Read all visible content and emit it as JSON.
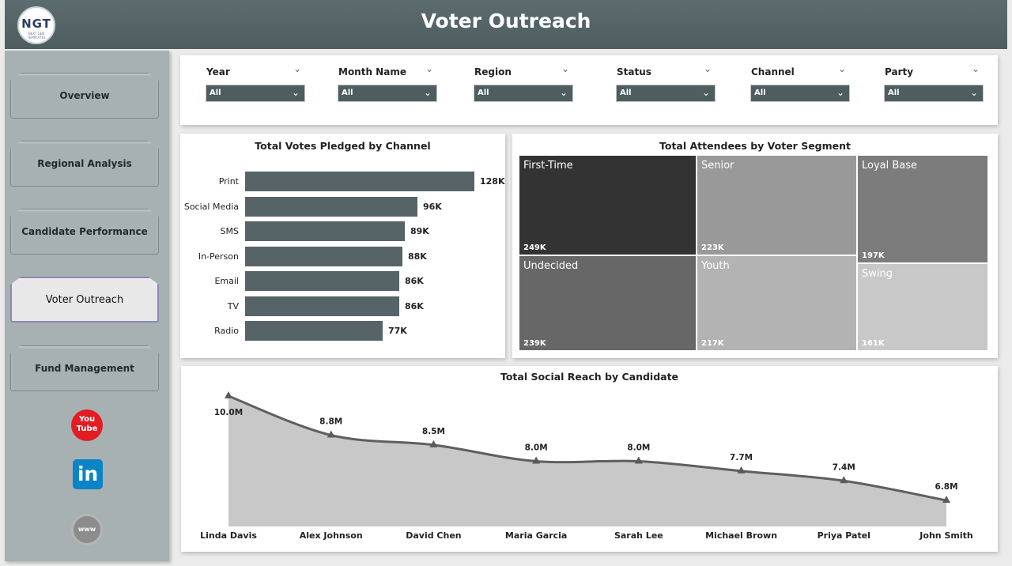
{
  "app": {
    "title": "Voter Outreach",
    "logo_text": "NGT",
    "logo_subtext": "NEXT GEN TEMPLATES"
  },
  "sidebar": {
    "items": [
      {
        "label": "Overview",
        "active": false
      },
      {
        "label": "Regional Analysis",
        "active": false
      },
      {
        "label": "Candidate Performance",
        "active": false
      },
      {
        "label": "Voter Outreach",
        "active": true
      },
      {
        "label": "Fund Management",
        "active": false
      }
    ],
    "social": {
      "youtube_label": "You Tube",
      "linkedin_label": "in",
      "web_label": "www"
    }
  },
  "filters": [
    {
      "label": "Year",
      "value": "All"
    },
    {
      "label": "Month Name",
      "value": "All"
    },
    {
      "label": "Region",
      "value": "All"
    },
    {
      "label": "Status",
      "value": "All"
    },
    {
      "label": "Channel",
      "value": "All"
    },
    {
      "label": "Party",
      "value": "All"
    }
  ],
  "colors": {
    "header": "#56666a",
    "bar": "#566468",
    "area": "#c8c8c8",
    "line": "#5f5f5f"
  },
  "chart_data": [
    {
      "type": "bar",
      "title": "Total Votes Pledged by Channel",
      "categories": [
        "Print",
        "Social Media",
        "SMS",
        "In-Person",
        "Email",
        "TV",
        "Radio"
      ],
      "values": [
        128000,
        96000,
        89000,
        88000,
        86000,
        86000,
        77000
      ],
      "labels": [
        "128K",
        "96K",
        "89K",
        "88K",
        "86K",
        "86K",
        "77K"
      ],
      "orientation": "horizontal"
    },
    {
      "type": "treemap",
      "title": "Total Attendees by Voter Segment",
      "categories": [
        "First-Time",
        "Undecided",
        "Senior",
        "Youth",
        "Loyal Base",
        "Swing"
      ],
      "values": [
        249000,
        239000,
        223000,
        217000,
        197000,
        161000
      ],
      "labels": [
        "249K",
        "239K",
        "223K",
        "217K",
        "197K",
        "161K"
      ],
      "colors": [
        "#333333",
        "#676767",
        "#999999",
        "#b3b3b3",
        "#7c7c7c",
        "#c8c8c8"
      ]
    },
    {
      "type": "area",
      "title": "Total Social Reach by Candidate",
      "categories": [
        "Linda Davis",
        "Alex Johnson",
        "David Chen",
        "Maria Garcia",
        "Sarah Lee",
        "Michael Brown",
        "Priya Patel",
        "John Smith"
      ],
      "values": [
        10.0,
        8.8,
        8.5,
        8.0,
        8.0,
        7.7,
        7.4,
        6.8
      ],
      "labels": [
        "10.0M",
        "8.8M",
        "8.5M",
        "8.0M",
        "8.0M",
        "7.7M",
        "7.4M",
        "6.8M"
      ],
      "unit": "M"
    }
  ]
}
